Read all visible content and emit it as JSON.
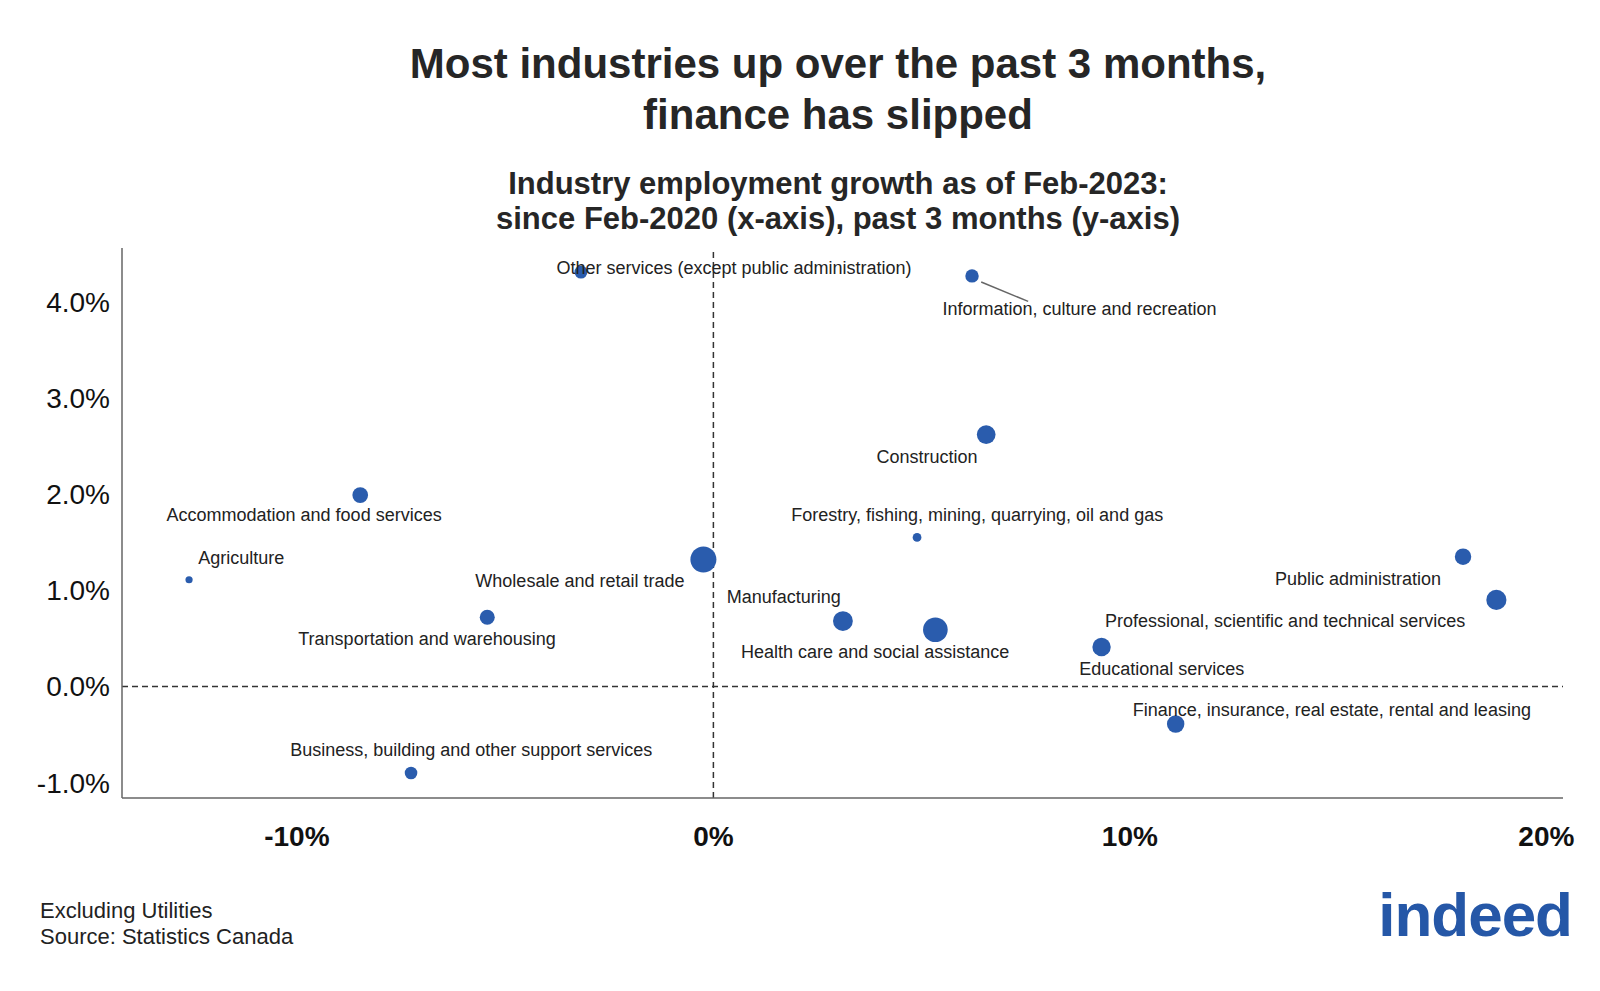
{
  "chart_data": {
    "type": "scatter",
    "title": [
      "Most industries up over the past 3 months,",
      "finance has slipped"
    ],
    "subtitle": [
      "Industry employment growth as of Feb-2023:",
      "since Feb-2020 (x-axis), past 3 months (y-axis)"
    ],
    "labels": [
      "Other services (except public administration)",
      "Information, culture and recreation",
      "Construction",
      "Accommodation and food services",
      "Forestry, fishing, mining, quarrying, oil and gas",
      "Agriculture",
      "Wholesale and retail trade",
      "Public administration",
      "Professional, scientific and technical services",
      "Transportation and warehousing",
      "Manufacturing",
      "Health care and social assistance",
      "Educational services",
      "Finance, insurance, real estate, rental and leasing",
      "Business, building and other support services"
    ],
    "x": [
      -3.18,
      6.21,
      6.55,
      -8.48,
      4.89,
      -12.59,
      -0.24,
      18.0,
      18.8,
      -5.43,
      3.11,
      5.33,
      9.32,
      11.1,
      -7.26
    ],
    "values": [
      4.31,
      4.27,
      2.62,
      1.99,
      1.55,
      1.11,
      1.32,
      1.35,
      0.9,
      0.72,
      0.68,
      0.59,
      0.41,
      -0.39,
      -0.9
    ],
    "sizes": [
      750,
      800,
      1550,
      1100,
      340,
      230,
      3000,
      1200,
      1800,
      1000,
      1750,
      2700,
      1500,
      1350,
      700
    ],
    "color": "#2a5cad",
    "xlim": [
      -14.2,
      20.4
    ],
    "xticks": [
      {
        "value": -10,
        "label": "-10%"
      },
      {
        "value": 0,
        "label": "0%"
      },
      {
        "value": 10,
        "label": "10%"
      },
      {
        "value": 20,
        "label": "20%"
      }
    ],
    "ylim": [
      -1.16,
      4.56
    ],
    "yticks": [
      {
        "value": -1,
        "label": "-1.0%"
      },
      {
        "value": 0,
        "label": "0.0%"
      },
      {
        "value": 1,
        "label": "1.0%"
      },
      {
        "value": 2,
        "label": "2.0%"
      },
      {
        "value": 3,
        "label": "3.0%"
      },
      {
        "value": 4,
        "label": "4.0%"
      }
    ],
    "zero_lines": {
      "x": 0,
      "y": 0
    },
    "grid": false,
    "notes": [
      "Excluding Utilities",
      "Source: Statistics Canada"
    ],
    "logo": "indeed"
  }
}
